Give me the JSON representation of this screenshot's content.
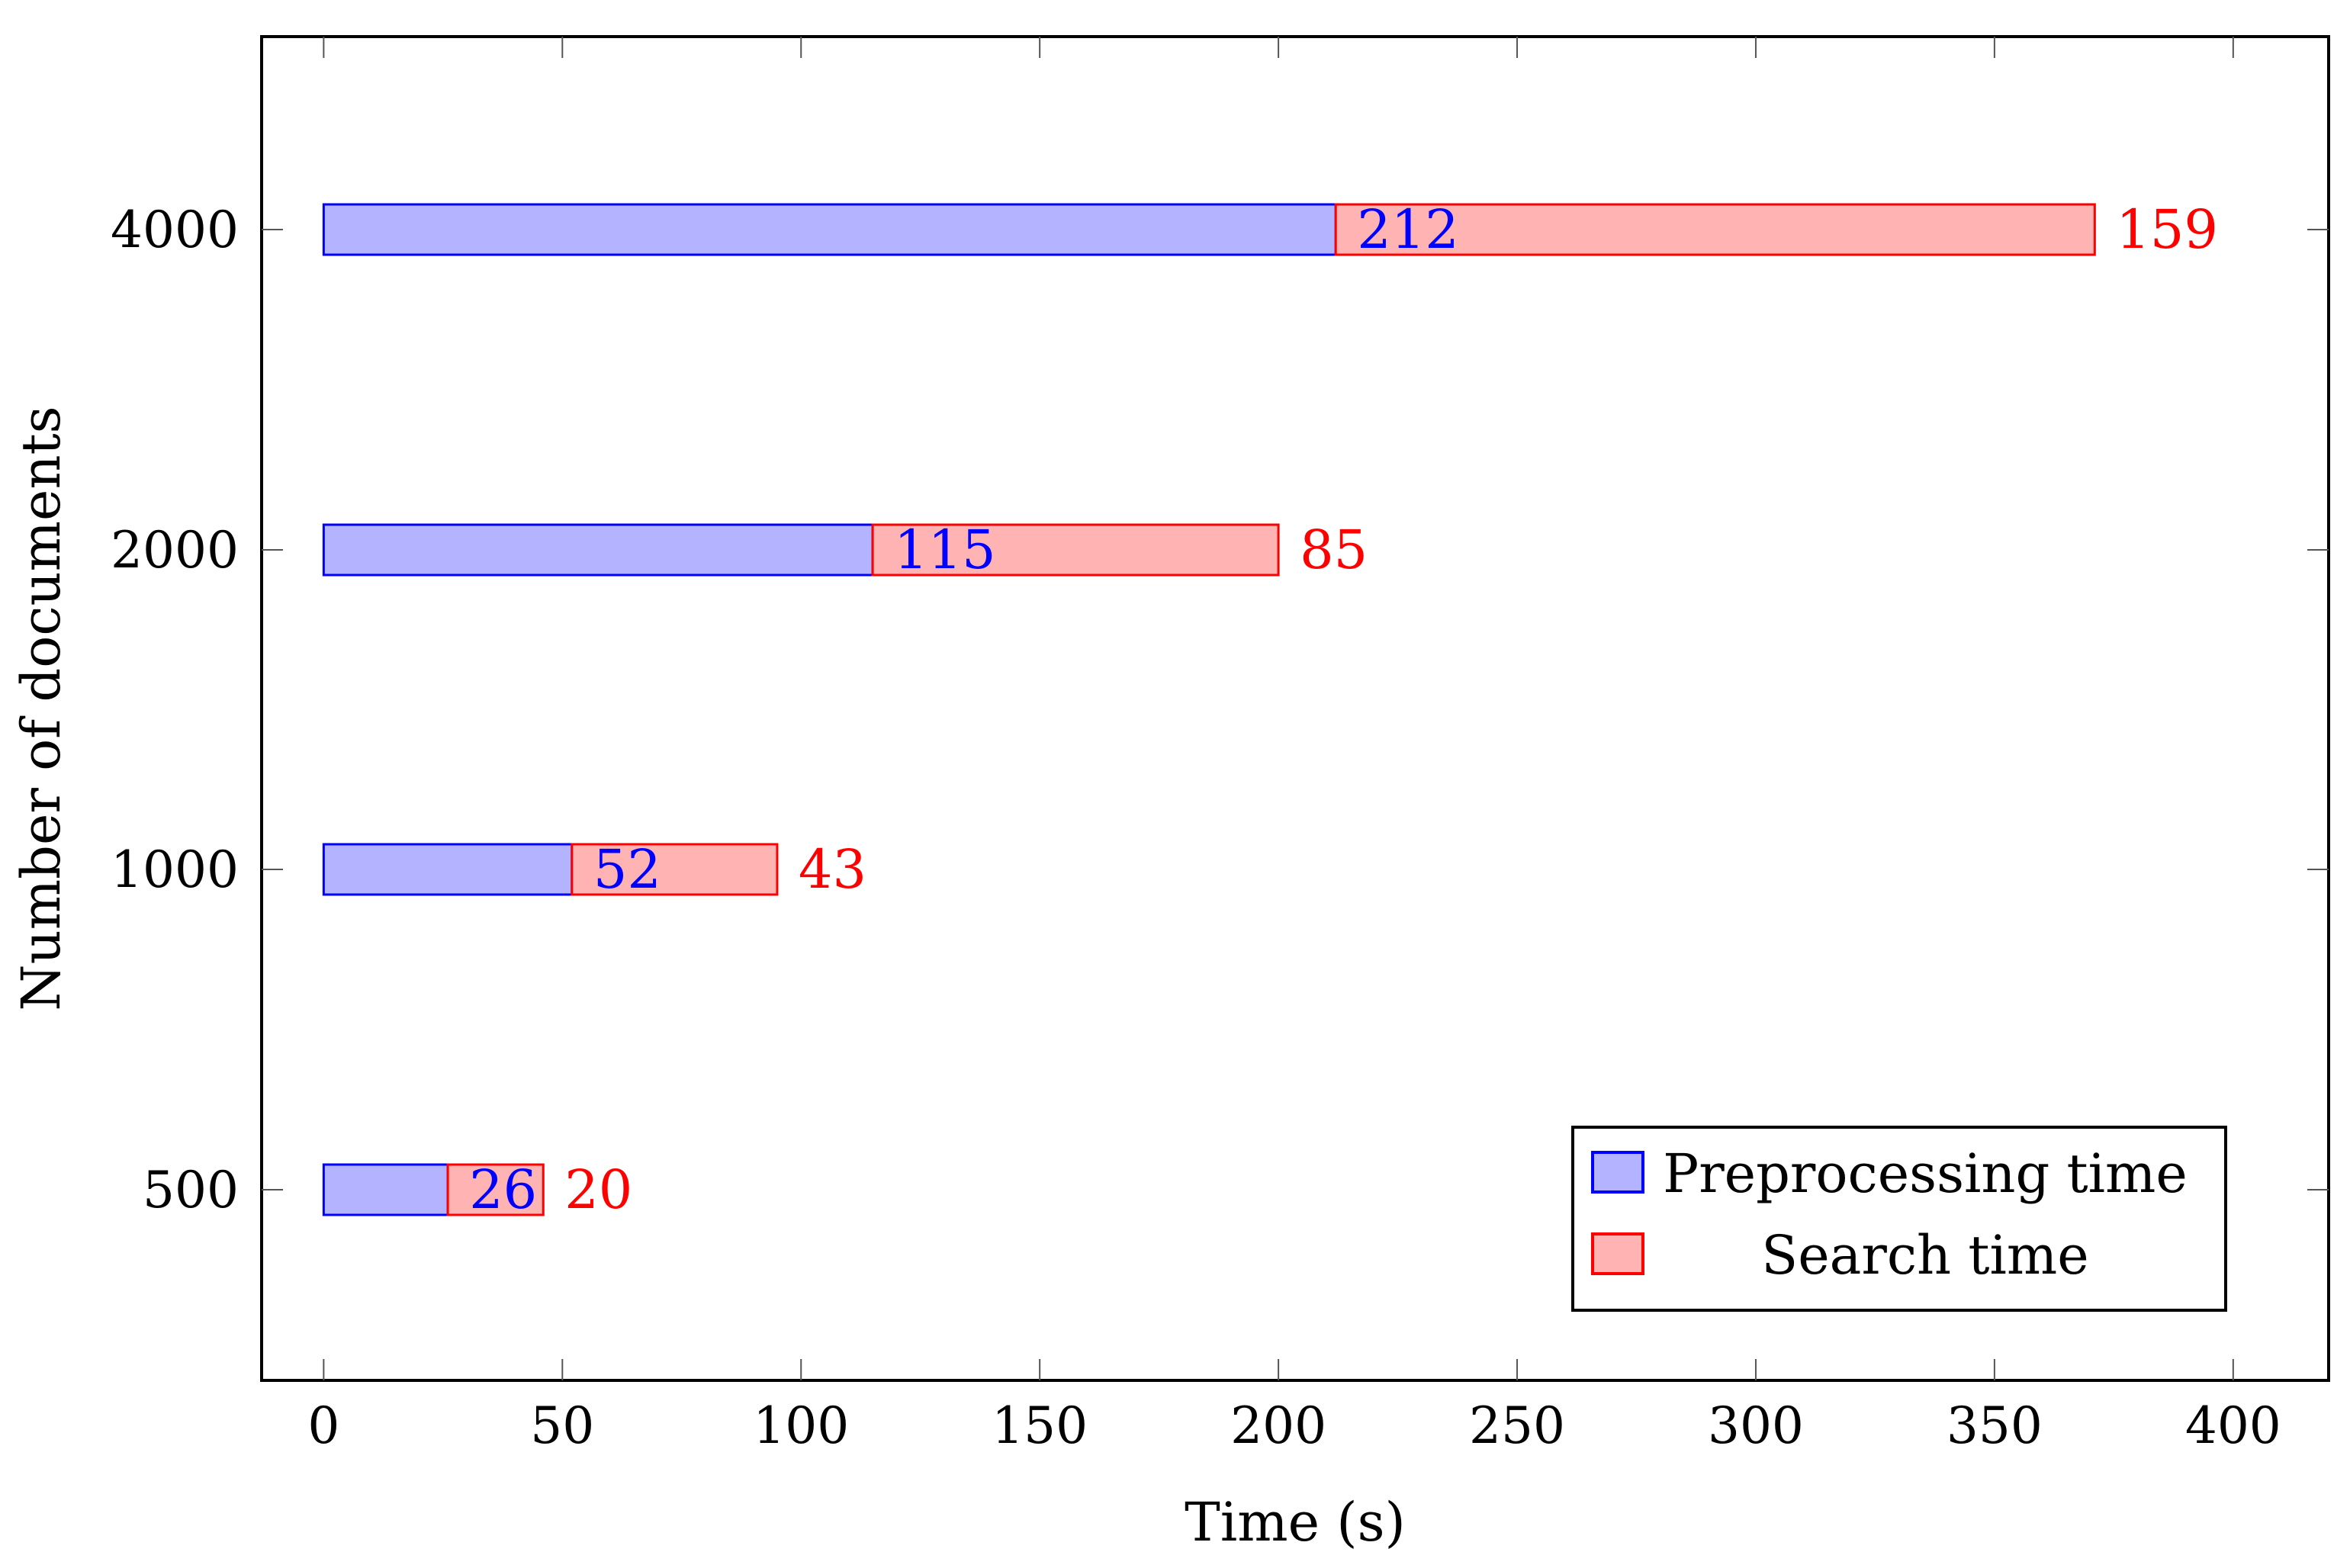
{
  "chart_data": {
    "type": "bar",
    "orientation": "horizontal",
    "stacked": true,
    "title": "",
    "xlabel": "Time (s)",
    "ylabel": "Number of documents",
    "xlim": [
      -13,
      420
    ],
    "x_ticks": [
      0,
      50,
      100,
      150,
      200,
      250,
      300,
      350,
      400
    ],
    "categories": [
      "500",
      "1000",
      "2000",
      "4000"
    ],
    "series": [
      {
        "name": "Preprocessing time",
        "values": [
          26,
          52,
          115,
          212
        ],
        "fill": "#b3b3ff",
        "stroke": "#0000ff",
        "label_color": "#0000ff"
      },
      {
        "name": "Search time",
        "values": [
          20,
          43,
          85,
          159
        ],
        "fill": "#ffb3b3",
        "stroke": "#ff0000",
        "label_color": "#ff0000"
      }
    ],
    "legend_position": "bottom-right",
    "grid": false
  }
}
